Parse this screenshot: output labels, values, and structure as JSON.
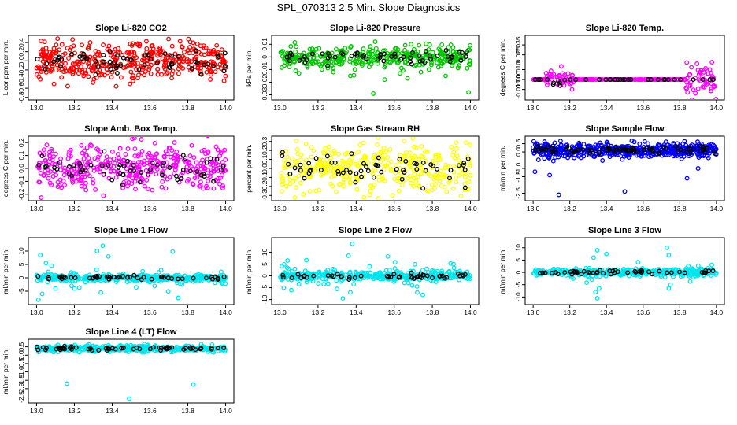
{
  "page": {
    "title": "SPL_070313  2.5 Min. Slope Diagnostics"
  },
  "chart_data": [
    {
      "type": "scatter",
      "title": "Slope Li-820 CO2",
      "ylabel": "Licor ppm per min.",
      "xlim": [
        13.0,
        14.0
      ],
      "ylim": [
        -0.8,
        0.5
      ],
      "xticks": [
        13.0,
        13.2,
        13.4,
        13.6,
        13.8,
        14.0
      ],
      "yticks": [
        -0.8,
        -0.6,
        -0.4,
        -0.2,
        0.0,
        0.2,
        0.4
      ],
      "ytick_labels": [
        "-0.8",
        "-0.6",
        "-0.4",
        "-0.2",
        "0.0",
        "0.2",
        "0.4"
      ],
      "colors": {
        "primary": "#ff0000",
        "secondary": "#000000"
      },
      "gen": {
        "mode": "band",
        "center": 0.0,
        "spread": 0.22,
        "n": 420,
        "nsec": 60,
        "seed": 11
      }
    },
    {
      "type": "scatter",
      "title": "Slope Li-820 Pressure",
      "ylabel": "kPa per min.",
      "xlim": [
        13.0,
        14.0
      ],
      "ylim": [
        -0.032,
        0.015
      ],
      "xticks": [
        13.0,
        13.2,
        13.4,
        13.6,
        13.8,
        14.0
      ],
      "yticks": [
        -0.03,
        -0.02,
        -0.01,
        0.0,
        0.01
      ],
      "ytick_labels": [
        "-0.03",
        "-0.02",
        "-0.01",
        "0",
        "0.01"
      ],
      "colors": {
        "primary": "#00c800",
        "secondary": "#000000"
      },
      "gen": {
        "mode": "band",
        "center": 0.0,
        "spread": 0.004,
        "n": 380,
        "nsec": 60,
        "seed": 23,
        "outliers": [
          [
            13.28,
            -0.012
          ],
          [
            13.37,
            -0.015
          ],
          [
            13.49,
            -0.029
          ],
          [
            13.55,
            -0.018
          ],
          [
            13.63,
            -0.013
          ],
          [
            13.67,
            -0.017
          ],
          [
            13.74,
            -0.012
          ],
          [
            13.87,
            -0.015
          ],
          [
            13.99,
            -0.028
          ],
          [
            13.1,
            -0.013
          ],
          [
            13.5,
            0.012
          ],
          [
            13.22,
            -0.01
          ]
        ]
      }
    },
    {
      "type": "scatter",
      "title": "Slope Li-820 Temp.",
      "ylabel": "degrees C per min.",
      "xlim": [
        13.0,
        14.0
      ],
      "ylim": [
        -0.018,
        0.042
      ],
      "xticks": [
        13.0,
        13.2,
        13.4,
        13.6,
        13.8,
        14.0
      ],
      "yticks": [
        -0.01,
        0.0,
        0.01,
        0.025,
        0.035
      ],
      "ytick_labels": [
        "-0.010",
        "0.000",
        "0.010",
        "0.025",
        "0.035"
      ],
      "colors": {
        "primary": "#ff00ff",
        "secondary": "#000000"
      },
      "gen": {
        "mode": "temp",
        "center": 0.0,
        "spread": 0.012,
        "n": 300,
        "nsec": 40,
        "seed": 37
      }
    },
    {
      "type": "scatter",
      "title": "Slope Amb. Box Temp.",
      "ylabel": "degrees C per min.",
      "xlim": [
        13.0,
        14.0
      ],
      "ylim": [
        -0.23,
        0.23
      ],
      "xticks": [
        13.0,
        13.2,
        13.4,
        13.6,
        13.8,
        14.0
      ],
      "yticks": [
        -0.2,
        -0.1,
        0.0,
        0.1,
        0.2
      ],
      "ytick_labels": [
        "-0.2",
        "-0.1",
        "0.0",
        "0.1",
        "0.2"
      ],
      "colors": {
        "primary": "#ff00ff",
        "secondary": "#000000"
      },
      "gen": {
        "mode": "band",
        "center": 0.0,
        "spread": 0.09,
        "n": 400,
        "nsec": 60,
        "seed": 41
      }
    },
    {
      "type": "scatter",
      "title": "Slope Gas Stream RH",
      "ylabel": "percent per min.",
      "xlim": [
        13.0,
        14.0
      ],
      "ylim": [
        -0.33,
        0.33
      ],
      "xticks": [
        13.0,
        13.2,
        13.4,
        13.6,
        13.8,
        14.0
      ],
      "yticks": [
        -0.3,
        -0.2,
        -0.1,
        0.0,
        0.1,
        0.2,
        0.3
      ],
      "ytick_labels": [
        "-0.3",
        "-0.2",
        "-0.1",
        "0.0",
        "0.1",
        "0.2",
        "0.3"
      ],
      "colors": {
        "primary": "#ffff00",
        "secondary": "#000000"
      },
      "gen": {
        "mode": "band",
        "center": 0.0,
        "spread": 0.14,
        "n": 380,
        "nsec": 60,
        "seed": 53
      }
    },
    {
      "type": "scatter",
      "title": "Slope Sample Flow",
      "ylabel": "ml/min per min.",
      "xlim": [
        13.0,
        14.0
      ],
      "ylim": [
        -2.8,
        0.8
      ],
      "xticks": [
        13.0,
        13.2,
        13.4,
        13.6,
        13.8,
        14.0
      ],
      "yticks": [
        -2.5,
        -1.5,
        -1.0,
        0.0,
        0.5
      ],
      "ytick_labels": [
        "-2.5",
        "-1.5",
        "-1.0",
        "0.0",
        "0.5"
      ],
      "colors": {
        "primary": "#0000ff",
        "secondary": "#000000"
      },
      "gen": {
        "mode": "band",
        "center": 0.1,
        "spread": 0.2,
        "n": 520,
        "nsec": 80,
        "seed": 67,
        "outliers": [
          [
            13.01,
            -1.2
          ],
          [
            13.09,
            -1.4
          ],
          [
            13.14,
            -2.6
          ],
          [
            13.5,
            -2.4
          ],
          [
            13.84,
            -1.6
          ],
          [
            13.9,
            -1.0
          ]
        ]
      }
    },
    {
      "type": "scatter",
      "title": "Slope Line 1 Flow",
      "ylabel": "ml/min per min.",
      "xlim": [
        13.0,
        14.0
      ],
      "ylim": [
        -9,
        14
      ],
      "xticks": [
        13.0,
        13.2,
        13.4,
        13.6,
        13.8,
        14.0
      ],
      "yticks": [
        -5,
        0,
        5,
        10
      ],
      "ytick_labels": [
        "-5",
        "0",
        "5",
        "10"
      ],
      "colors": {
        "primary": "#00e5ee",
        "secondary": "#000000"
      },
      "gen": {
        "mode": "flow",
        "center": 0.0,
        "spread": 0.6,
        "n": 420,
        "nsec": 50,
        "seed": 71,
        "outliers": [
          [
            13.02,
            8.5
          ],
          [
            13.05,
            5.5
          ],
          [
            13.08,
            4.5
          ],
          [
            13.1,
            -4.0
          ],
          [
            13.03,
            -6.0
          ],
          [
            13.01,
            -8.2
          ],
          [
            13.32,
            10.0
          ],
          [
            13.35,
            12.0
          ],
          [
            13.38,
            8.0
          ],
          [
            13.34,
            -5.5
          ],
          [
            13.72,
            9.8
          ],
          [
            13.75,
            -7.5
          ],
          [
            13.77,
            -2.5
          ],
          [
            13.2,
            -4.0
          ]
        ]
      }
    },
    {
      "type": "scatter",
      "title": "Slope Line 2 Flow",
      "ylabel": "ml/min per min.",
      "xlim": [
        13.0,
        14.0
      ],
      "ylim": [
        -11,
        15
      ],
      "xticks": [
        13.0,
        13.2,
        13.4,
        13.6,
        13.8,
        14.0
      ],
      "yticks": [
        -10,
        -5,
        0,
        5,
        10
      ],
      "ytick_labels": [
        "-10",
        "-5",
        "0",
        "5",
        "10"
      ],
      "colors": {
        "primary": "#00e5ee",
        "secondary": "#000000"
      },
      "gen": {
        "mode": "flow",
        "center": 0.0,
        "spread": 1.0,
        "n": 420,
        "nsec": 50,
        "seed": 83,
        "outliers": [
          [
            13.04,
            6.5
          ],
          [
            13.06,
            -6.0
          ],
          [
            13.1,
            -3.5
          ],
          [
            13.3,
            -5.5
          ],
          [
            13.33,
            -9.5
          ],
          [
            13.37,
            -7.0
          ],
          [
            13.38,
            13.5
          ],
          [
            13.36,
            8.5
          ],
          [
            13.72,
            -4.5
          ],
          [
            13.75,
            -8.0
          ],
          [
            13.02,
            -5.0
          ]
        ]
      }
    },
    {
      "type": "scatter",
      "title": "Slope Line 3 Flow",
      "ylabel": "ml/min per min.",
      "xlim": [
        13.0,
        14.0
      ],
      "ylim": [
        -12,
        13
      ],
      "xticks": [
        13.0,
        13.2,
        13.4,
        13.6,
        13.8,
        14.0
      ],
      "yticks": [
        -10,
        -5,
        0,
        5,
        10
      ],
      "ytick_labels": [
        "-10",
        "-5",
        "0",
        "5",
        "10"
      ],
      "colors": {
        "primary": "#00e5ee",
        "secondary": "#000000"
      },
      "gen": {
        "mode": "flow",
        "center": 0.0,
        "spread": 0.7,
        "n": 420,
        "nsec": 50,
        "seed": 97,
        "outliers": [
          [
            13.33,
            6.0
          ],
          [
            13.35,
            9.0
          ],
          [
            13.34,
            -8.0
          ],
          [
            13.35,
            -10.5
          ],
          [
            13.36,
            -6.5
          ],
          [
            13.73,
            10.0
          ],
          [
            13.74,
            7.0
          ],
          [
            13.75,
            -5.0
          ],
          [
            13.74,
            -6.5
          ],
          [
            13.32,
            -3.0
          ]
        ]
      }
    },
    {
      "type": "scatter",
      "title": "Slope Line 4 (LT) Flow",
      "ylabel": "ml/min per min.",
      "xlim": [
        13.0,
        14.0
      ],
      "ylim": [
        -2.7,
        0.8
      ],
      "xticks": [
        13.0,
        13.2,
        13.4,
        13.6,
        13.8,
        14.0
      ],
      "yticks": [
        -2.5,
        -2.0,
        -1.5,
        -1.0,
        -0.5,
        0.0,
        0.5
      ],
      "ytick_labels": [
        "-2.5",
        "-2.0",
        "-1.5",
        "-1.0",
        "-0.5",
        "0.0",
        "0.5"
      ],
      "colors": {
        "primary": "#00e5ee",
        "secondary": "#000000"
      },
      "gen": {
        "mode": "band",
        "center": 0.4,
        "spread": 0.09,
        "n": 420,
        "nsec": 60,
        "seed": 101,
        "outliers": [
          [
            13.16,
            -1.7
          ],
          [
            13.49,
            -2.6
          ],
          [
            13.83,
            -1.75
          ]
        ]
      }
    }
  ]
}
